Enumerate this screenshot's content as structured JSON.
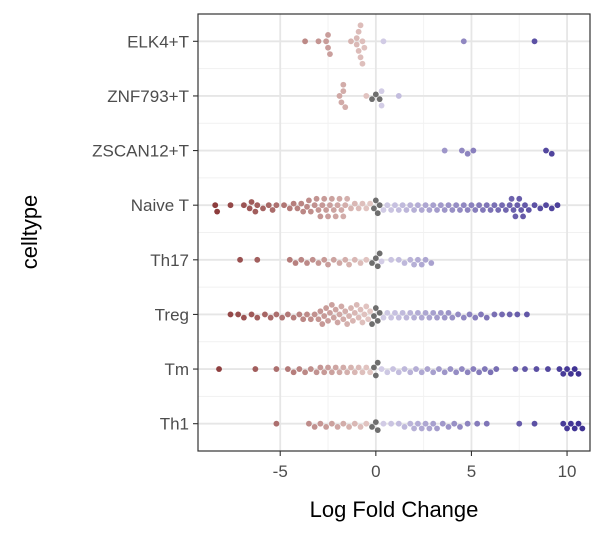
{
  "chart_data": {
    "type": "scatter",
    "subtype": "beeswarm",
    "title": "",
    "xlabel": "Log Fold Change",
    "ylabel": "celltype",
    "xlim": [
      -9.3,
      11.2
    ],
    "x_ticks": [
      -5,
      0,
      5,
      10
    ],
    "x_tick_labels": [
      "-5",
      "0",
      "5",
      "10"
    ],
    "grid": true,
    "legend": "none",
    "color_scale": {
      "low": "#8b3a3a",
      "mid_low": "#e8cfcb",
      "zero": "#6e6e6e",
      "mid_high": "#d9d4ea",
      "high": "#3f3293"
    },
    "categories": [
      "ELK4+T",
      "ZNF793+T",
      "ZSCAN12+T",
      "Naive T",
      "Th17",
      "Treg",
      "Tm",
      "Th1"
    ],
    "series": [
      {
        "category": "ELK4+T",
        "x": [
          -3.7,
          -3.0,
          -2.6,
          -2.5,
          -2.4,
          -2.5,
          -1.3,
          -1.0,
          -1.0,
          -0.9,
          -0.8,
          -0.7,
          -0.6,
          -0.9,
          -0.8,
          -0.7,
          0.4,
          4.6,
          8.3
        ]
      },
      {
        "category": "ZNF793+T",
        "x": [
          -1.9,
          -1.8,
          -1.7,
          -1.7,
          -1.6,
          -0.5,
          -0.2,
          0.0,
          0.2,
          0.3,
          0.3,
          1.2
        ]
      },
      {
        "category": "ZSCAN12+T",
        "x": [
          3.6,
          4.5,
          4.8,
          5.1,
          8.9,
          9.2
        ]
      },
      {
        "category": "Naive T",
        "x": [
          -8.4,
          -8.3,
          -7.6,
          -6.9,
          -6.6,
          -6.5,
          -6.3,
          -6.2,
          -5.9,
          -5.6,
          -5.4,
          -5.2,
          -4.8,
          -4.5,
          -4.3,
          -4.1,
          -3.9,
          -3.8,
          -3.6,
          -3.5,
          -3.4,
          -3.2,
          -3.1,
          -3.0,
          -2.9,
          -2.8,
          -2.7,
          -2.6,
          -2.5,
          -2.4,
          -2.3,
          -2.2,
          -2.1,
          -2.0,
          -1.9,
          -1.8,
          -1.7,
          -1.6,
          -1.5,
          -1.3,
          -1.1,
          -0.9,
          -0.7,
          -0.5,
          -0.3,
          -0.1,
          0.0,
          0.1,
          0.2,
          0.4,
          0.6,
          0.8,
          1.0,
          1.2,
          1.4,
          1.6,
          1.8,
          2.0,
          2.2,
          2.4,
          2.6,
          2.8,
          3.0,
          3.2,
          3.4,
          3.6,
          3.8,
          4.0,
          4.2,
          4.4,
          4.6,
          4.8,
          5.0,
          5.2,
          5.4,
          5.6,
          5.8,
          6.0,
          6.2,
          6.4,
          6.6,
          6.8,
          7.0,
          7.1,
          7.2,
          7.3,
          7.4,
          7.5,
          7.6,
          7.7,
          7.8,
          8.0,
          8.3,
          8.6,
          8.9,
          9.2,
          9.5
        ]
      },
      {
        "category": "Th17",
        "x": [
          -7.1,
          -6.2,
          -4.5,
          -4.2,
          -3.9,
          -3.6,
          -3.3,
          -3.0,
          -2.7,
          -2.5,
          -2.2,
          -1.9,
          -1.6,
          -1.4,
          -1.1,
          -0.8,
          -0.5,
          -0.2,
          0.0,
          0.1,
          0.2,
          0.3,
          0.8,
          1.2,
          1.5,
          1.8,
          2.0,
          2.2,
          2.4,
          2.6,
          2.9
        ]
      },
      {
        "category": "Treg",
        "x": [
          -7.6,
          -7.2,
          -6.9,
          -6.5,
          -6.2,
          -5.8,
          -5.5,
          -5.2,
          -4.9,
          -4.6,
          -4.3,
          -4.0,
          -3.8,
          -3.6,
          -3.4,
          -3.2,
          -3.0,
          -2.9,
          -2.8,
          -2.7,
          -2.6,
          -2.5,
          -2.4,
          -2.3,
          -2.2,
          -2.1,
          -2.0,
          -1.9,
          -1.8,
          -1.7,
          -1.6,
          -1.5,
          -1.4,
          -1.3,
          -1.2,
          -1.1,
          -1.0,
          -0.9,
          -0.8,
          -0.7,
          -0.6,
          -0.5,
          -0.4,
          -0.3,
          -0.2,
          -0.1,
          0.0,
          0.1,
          0.2,
          0.4,
          0.6,
          0.8,
          1.0,
          1.2,
          1.4,
          1.6,
          1.8,
          2.0,
          2.2,
          2.4,
          2.6,
          2.8,
          3.0,
          3.2,
          3.4,
          3.6,
          3.8,
          4.0,
          4.3,
          4.6,
          4.9,
          5.2,
          5.5,
          5.8,
          6.2,
          6.6,
          7.0,
          7.4,
          7.9
        ]
      },
      {
        "category": "Tm",
        "x": [
          -8.2,
          -6.3,
          -5.2,
          -4.6,
          -4.3,
          -4.0,
          -3.7,
          -3.4,
          -3.1,
          -2.9,
          -2.7,
          -2.5,
          -2.3,
          -2.1,
          -1.9,
          -1.7,
          -1.5,
          -1.3,
          -1.1,
          -0.9,
          -0.7,
          -0.5,
          -0.3,
          -0.1,
          0.0,
          0.1,
          0.3,
          0.6,
          0.9,
          1.2,
          1.5,
          1.8,
          2.1,
          2.4,
          2.7,
          3.0,
          3.3,
          3.6,
          3.9,
          4.2,
          4.5,
          4.8,
          5.1,
          5.4,
          5.7,
          6.0,
          6.3,
          7.3,
          7.8,
          8.4,
          9.0,
          9.6,
          9.8,
          10.0,
          10.2,
          10.4,
          10.6
        ]
      },
      {
        "category": "Th1",
        "x": [
          -5.2,
          -3.5,
          -3.2,
          -2.9,
          -2.6,
          -2.3,
          -2.0,
          -1.7,
          -1.4,
          -1.1,
          -0.8,
          -0.5,
          -0.2,
          0.0,
          0.1,
          0.4,
          0.8,
          1.2,
          1.5,
          1.8,
          2.0,
          2.2,
          2.4,
          2.6,
          2.8,
          3.0,
          3.2,
          3.5,
          3.8,
          4.1,
          4.4,
          4.8,
          5.3,
          5.8,
          7.5,
          8.3,
          9.8,
          10.0,
          10.2,
          10.4,
          10.6,
          10.8
        ]
      }
    ]
  }
}
